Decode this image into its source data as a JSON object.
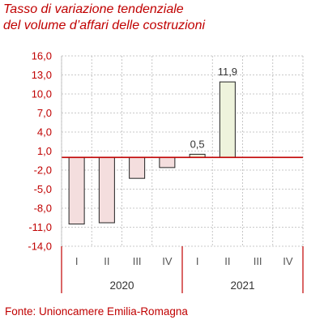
{
  "title_line1": "Tasso di variazione tendenziale",
  "title_line2": "del volume d’affari delle costruzioni",
  "source": "Fonte: Unioncamere Emilia-Romagna",
  "colors": {
    "accent": "#c00000",
    "negative_fill": "#f4dede",
    "positive_fill": "#eef3dc",
    "bar_stroke": "#222222",
    "grid": "#b8b8b8"
  },
  "chart_data": {
    "type": "bar",
    "title": "Tasso di variazione tendenziale del volume d’affari delle costruzioni",
    "categories": [
      "I",
      "II",
      "III",
      "IV",
      "I",
      "II",
      "III",
      "IV"
    ],
    "groups": [
      {
        "label": "2020",
        "categories": [
          "I",
          "II",
          "III",
          "IV"
        ]
      },
      {
        "label": "2021",
        "categories": [
          "I",
          "II",
          "III",
          "IV"
        ]
      }
    ],
    "values": [
      -10.5,
      -10.3,
      -3.3,
      -1.6,
      0.5,
      11.9,
      null,
      null
    ],
    "data_labels": [
      "",
      "",
      "",
      "",
      "0,5",
      "11,9",
      "",
      ""
    ],
    "yticks": [
      "16,0",
      "13,0",
      "10,0",
      "7,0",
      "4,0",
      "1,0",
      "-2,0",
      "-5,0",
      "-8,0",
      "-11,0",
      "-14,0"
    ],
    "ylim": [
      -14,
      16
    ],
    "grid": true,
    "xlabel": "",
    "ylabel": ""
  }
}
